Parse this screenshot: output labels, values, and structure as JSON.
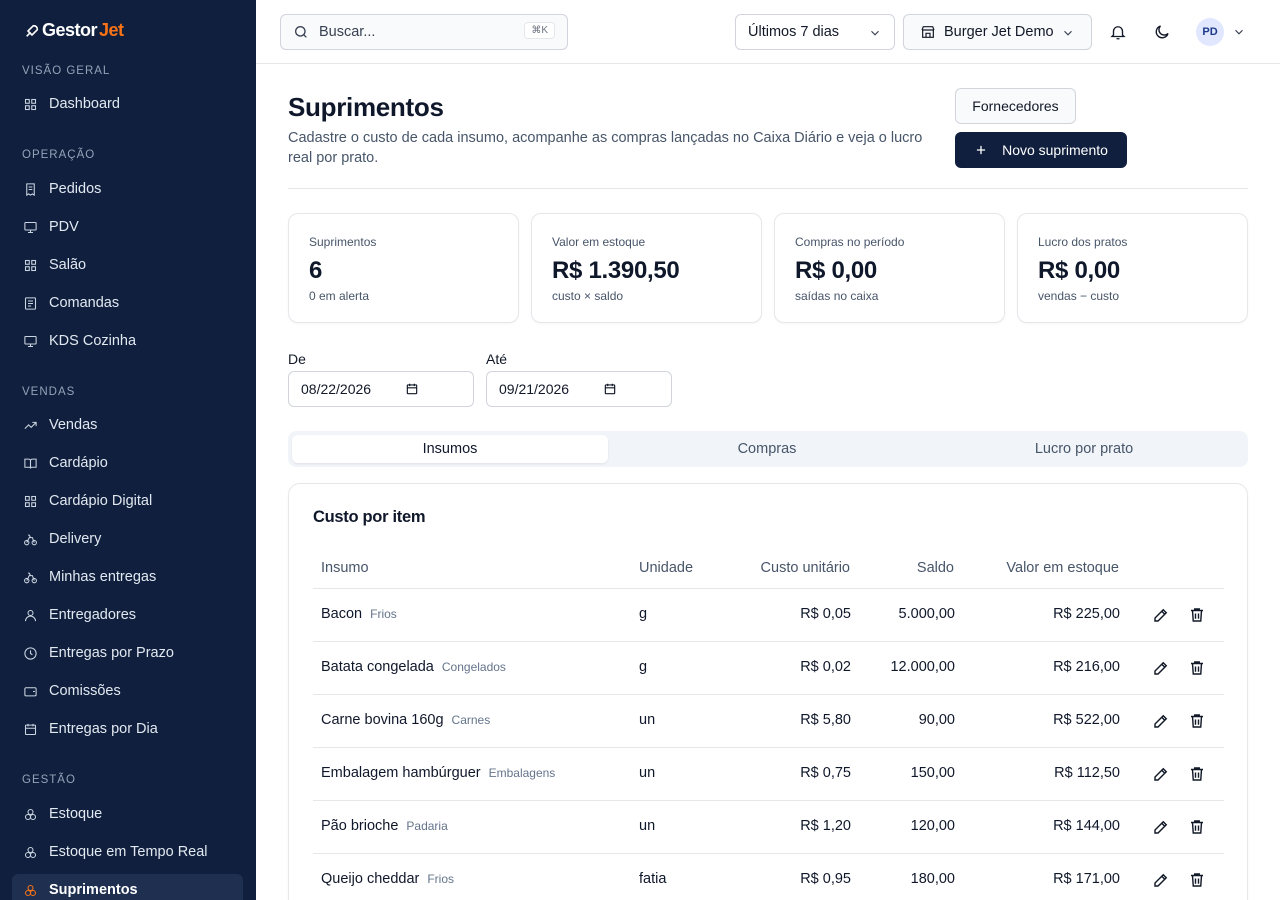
{
  "app": {
    "logo_main": "Gestor",
    "logo_accent": "Jet"
  },
  "sidebar": {
    "sections": [
      {
        "title": "VISÃO GERAL",
        "items": [
          {
            "label": "Dashboard",
            "icon": "grid-icon"
          }
        ]
      },
      {
        "title": "OPERAÇÃO",
        "items": [
          {
            "label": "Pedidos",
            "icon": "receipt-icon"
          },
          {
            "label": "PDV",
            "icon": "monitor-icon"
          },
          {
            "label": "Salão",
            "icon": "grid-icon"
          },
          {
            "label": "Comandas",
            "icon": "list-icon"
          },
          {
            "label": "KDS Cozinha",
            "icon": "monitor-icon"
          }
        ]
      },
      {
        "title": "VENDAS",
        "items": [
          {
            "label": "Vendas",
            "icon": "trend-icon"
          },
          {
            "label": "Cardápio",
            "icon": "book-icon"
          },
          {
            "label": "Cardápio Digital",
            "icon": "grid-icon"
          },
          {
            "label": "Delivery",
            "icon": "bike-icon"
          },
          {
            "label": "Minhas entregas",
            "icon": "bike-icon"
          },
          {
            "label": "Entregadores",
            "icon": "user-icon"
          },
          {
            "label": "Entregas por Prazo",
            "icon": "clock-icon"
          },
          {
            "label": "Comissões",
            "icon": "wallet-icon"
          },
          {
            "label": "Entregas por Dia",
            "icon": "calendar-icon"
          }
        ]
      },
      {
        "title": "GESTÃO",
        "items": [
          {
            "label": "Estoque",
            "icon": "boxes-icon"
          },
          {
            "label": "Estoque em Tempo Real",
            "icon": "boxes-icon"
          },
          {
            "label": "Suprimentos",
            "icon": "boxes-icon",
            "active": true
          }
        ]
      }
    ]
  },
  "topbar": {
    "search_placeholder": "Buscar...",
    "search_shortcut": "⌘K",
    "period": "Últimos 7 dias",
    "store": "Burger Jet Demo",
    "avatar_initials": "PD"
  },
  "page": {
    "title": "Suprimentos",
    "subtitle": "Cadastre o custo de cada insumo, acompanhe as compras lançadas no Caixa Diário e veja o lucro real por prato.",
    "btn_suppliers": "Fornecedores",
    "btn_new": "Novo suprimento"
  },
  "stats": [
    {
      "label": "Suprimentos",
      "value": "6",
      "sub": "0 em alerta"
    },
    {
      "label": "Valor em estoque",
      "value": "R$ 1.390,50",
      "sub": "custo × saldo"
    },
    {
      "label": "Compras no período",
      "value": "R$ 0,00",
      "sub": "saídas no caixa"
    },
    {
      "label": "Lucro dos pratos",
      "value": "R$ 0,00",
      "sub": "vendas − custo"
    }
  ],
  "filters": {
    "from_label": "De",
    "from_value": "08/22/2026",
    "to_label": "Até",
    "to_value": "09/21/2026"
  },
  "tabs": [
    "Insumos",
    "Compras",
    "Lucro por prato"
  ],
  "table": {
    "title": "Custo por item",
    "headers": {
      "item": "Insumo",
      "unit": "Unidade",
      "cost": "Custo unitário",
      "balance": "Saldo",
      "stock_value": "Valor em estoque"
    },
    "rows": [
      {
        "name": "Bacon",
        "category": "Frios",
        "unit": "g",
        "cost": "R$ 0,05",
        "balance": "5.000,00",
        "stock_value": "R$ 225,00"
      },
      {
        "name": "Batata congelada",
        "category": "Congelados",
        "unit": "g",
        "cost": "R$ 0,02",
        "balance": "12.000,00",
        "stock_value": "R$ 216,00"
      },
      {
        "name": "Carne bovina 160g",
        "category": "Carnes",
        "unit": "un",
        "cost": "R$ 5,80",
        "balance": "90,00",
        "stock_value": "R$ 522,00"
      },
      {
        "name": "Embalagem hambúrguer",
        "category": "Embalagens",
        "unit": "un",
        "cost": "R$ 0,75",
        "balance": "150,00",
        "stock_value": "R$ 112,50"
      },
      {
        "name": "Pão brioche",
        "category": "Padaria",
        "unit": "un",
        "cost": "R$ 1,20",
        "balance": "120,00",
        "stock_value": "R$ 144,00"
      },
      {
        "name": "Queijo cheddar",
        "category": "Frios",
        "unit": "fatia",
        "cost": "R$ 0,95",
        "balance": "180,00",
        "stock_value": "R$ 171,00"
      }
    ]
  },
  "colors": {
    "sidebar_bg": "#0f1f3d",
    "accent": "#f97316",
    "primary_button": "#0f1f3d"
  }
}
